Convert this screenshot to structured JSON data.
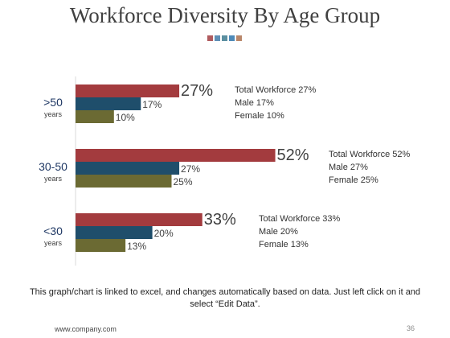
{
  "slide": {
    "title": "Workforce Diversity By Age Group",
    "decor_colors": [
      "#b05b5e",
      "#5f8fb5",
      "#5b8fa0",
      "#4e8ab8",
      "#b9876a"
    ],
    "footnote": "This graph/chart is linked to excel, and changes automatically based on data. Just left click on it and select “Edit Data”.",
    "footer_url": "www.company.com",
    "page_number": "36"
  },
  "chart_data": {
    "type": "bar",
    "orientation": "horizontal",
    "categories": [
      ">50",
      "30-50",
      "<30"
    ],
    "category_sublabel": "years",
    "series": [
      {
        "name": "Total Workforce",
        "values": [
          27,
          52,
          33
        ],
        "color": "#a33b3e"
      },
      {
        "name": "Male",
        "values": [
          17,
          27,
          20
        ],
        "color": "#1f4e6b"
      },
      {
        "name": "Female",
        "values": [
          10,
          25,
          13
        ],
        "color": "#6b6a33"
      }
    ],
    "xlim": [
      0,
      60
    ],
    "grid": false,
    "value_labels": [
      [
        "27%",
        "17%",
        "10%"
      ],
      [
        "52%",
        "27%",
        "25%"
      ],
      [
        "33%",
        "20%",
        "13%"
      ]
    ],
    "annotations": [
      [
        "Total Workforce 27%",
        "Male 17%",
        "Female 10%"
      ],
      [
        "Total Workforce 52%",
        "Male 27%",
        "Female 25%"
      ],
      [
        "Total Workforce 33%",
        "Male 20%",
        "Female 13%"
      ]
    ]
  }
}
